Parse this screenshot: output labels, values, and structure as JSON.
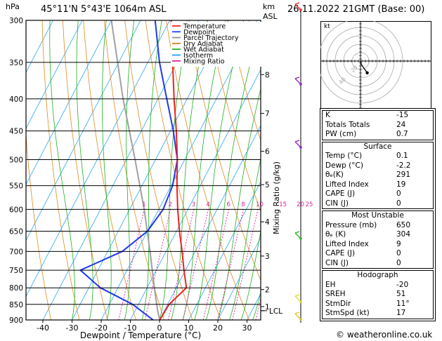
{
  "header": {
    "location": "45°11'N  5°43'E  1064m  ASL",
    "date": "26.11.2022  21GMT  (Base: 00)",
    "hpa_label": "hPa",
    "km_label": "km",
    "asl_label": "ASL"
  },
  "legend": [
    {
      "label": "Temperature",
      "color": "#ff2020"
    },
    {
      "label": "Dewpoint",
      "color": "#2040ff"
    },
    {
      "label": "Parcel Trajectory",
      "color": "#909090"
    },
    {
      "label": "Dry Adiabat",
      "color": "#e08020"
    },
    {
      "label": "Wet Adiabat",
      "color": "#20b020"
    },
    {
      "label": "Isotherm",
      "color": "#20a0ff"
    },
    {
      "label": "Mixing Ratio",
      "color": "#e020a0"
    }
  ],
  "chart_data": {
    "type": "skew-t",
    "xlabel": "Dewpoint / Temperature (°C)",
    "ylabel_left": "hPa",
    "ylabel_right": "Mixing Ratio (g/kg)",
    "pressure_ticks": [
      "300",
      "350",
      "400",
      "450",
      "500",
      "550",
      "600",
      "650",
      "700",
      "750",
      "800",
      "850",
      "900"
    ],
    "temp_ticks": [
      "-40",
      "-30",
      "-20",
      "-10",
      "0",
      "10",
      "20",
      "30"
    ],
    "km_ticks": [
      {
        "label": "7",
        "p": 422
      },
      {
        "label": "6",
        "p": 485
      },
      {
        "label": "5",
        "p": 548
      },
      {
        "label": "4",
        "p": 628
      },
      {
        "label": "3",
        "p": 712
      },
      {
        "label": "2",
        "p": 805
      },
      {
        "label": "1",
        "p": 857
      },
      {
        "label": "LCL",
        "p": 870
      }
    ],
    "km_top": {
      "label": "8",
      "p": 366
    },
    "mixing_ratio_labels": [
      "1",
      "2",
      "3",
      "4",
      "6",
      "8",
      "10",
      "15",
      "20",
      "25"
    ],
    "temperature": [
      {
        "p": 900,
        "t": 0.1
      },
      {
        "p": 850,
        "t": 0.5
      },
      {
        "p": 800,
        "t": 3.5
      },
      {
        "p": 750,
        "t": -0.5
      },
      {
        "p": 700,
        "t": -4.5
      },
      {
        "p": 650,
        "t": -9
      },
      {
        "p": 600,
        "t": -13.5
      },
      {
        "p": 550,
        "t": -18
      },
      {
        "p": 500,
        "t": -22.5
      },
      {
        "p": 450,
        "t": -28
      },
      {
        "p": 400,
        "t": -34.5
      },
      {
        "p": 350,
        "t": -41.5
      },
      {
        "p": 300,
        "t": -49.5
      }
    ],
    "dewpoint": [
      {
        "p": 900,
        "t": -2.2
      },
      {
        "p": 850,
        "t": -12
      },
      {
        "p": 800,
        "t": -26
      },
      {
        "p": 750,
        "t": -36
      },
      {
        "p": 700,
        "t": -25
      },
      {
        "p": 650,
        "t": -20
      },
      {
        "p": 600,
        "t": -18.5
      },
      {
        "p": 550,
        "t": -19.5
      },
      {
        "p": 500,
        "t": -22.5
      },
      {
        "p": 450,
        "t": -29
      },
      {
        "p": 400,
        "t": -37
      },
      {
        "p": 350,
        "t": -46
      },
      {
        "p": 300,
        "t": -55
      }
    ],
    "parcel": [
      {
        "p": 900,
        "t": 0.1
      },
      {
        "p": 870,
        "t": -2.3
      },
      {
        "p": 800,
        "t": -7.5
      },
      {
        "p": 700,
        "t": -15.5
      },
      {
        "p": 600,
        "t": -25
      },
      {
        "p": 500,
        "t": -37
      },
      {
        "p": 400,
        "t": -52
      },
      {
        "p": 300,
        "t": -70
      }
    ],
    "hodograph": {
      "label": "kt",
      "ring_labels": [
        "20",
        "40"
      ],
      "points": [
        [
          0,
          0
        ],
        [
          0.5,
          -2
        ],
        [
          1.5,
          -3.5
        ],
        [
          4,
          -7
        ]
      ]
    }
  },
  "panel": {
    "top_rows": [
      {
        "k": "K",
        "v": "-15"
      },
      {
        "k": "Totals Totals",
        "v": "24"
      },
      {
        "k": "PW (cm)",
        "v": "0.7"
      }
    ],
    "surface": {
      "title": "Surface",
      "rows": [
        {
          "k": "Temp (°C)",
          "v": "0.1"
        },
        {
          "k": "Dewp (°C)",
          "v": "-2.2"
        },
        {
          "k": "θₑ(K)",
          "v": "291"
        },
        {
          "k": "Lifted Index",
          "v": "19"
        },
        {
          "k": "CAPE (J)",
          "v": "0"
        },
        {
          "k": "CIN (J)",
          "v": "0"
        }
      ]
    },
    "unstable": {
      "title": "Most Unstable",
      "rows": [
        {
          "k": "Pressure (mb)",
          "v": "650"
        },
        {
          "k": "θₑ (K)",
          "v": "304"
        },
        {
          "k": "Lifted Index",
          "v": "9"
        },
        {
          "k": "CAPE (J)",
          "v": "0"
        },
        {
          "k": "CIN (J)",
          "v": "0"
        }
      ]
    },
    "hodo": {
      "title": "Hodograph",
      "rows": [
        {
          "k": "EH",
          "v": "-20"
        },
        {
          "k": "SREH",
          "v": "51"
        },
        {
          "k": "StmDir",
          "v": "11°"
        },
        {
          "k": "StmSpd (kt)",
          "v": "17"
        }
      ]
    }
  },
  "footer": "© weatheronline.co.uk"
}
